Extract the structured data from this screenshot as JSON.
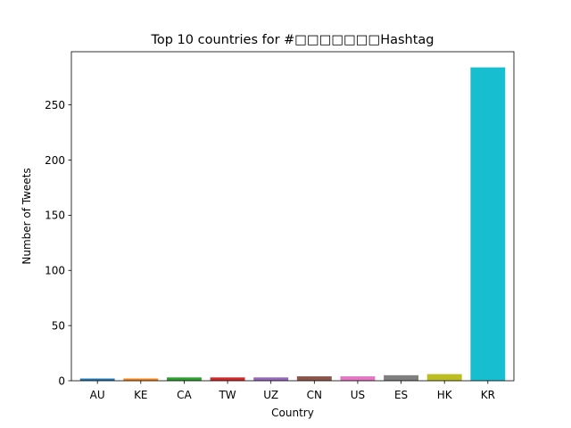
{
  "chart_data": {
    "type": "bar",
    "title": "Top 10 countries for #□□□□□□□Hashtag",
    "xlabel": "Country",
    "ylabel": "Number of Tweets",
    "categories": [
      "AU",
      "KE",
      "CA",
      "TW",
      "UZ",
      "CN",
      "US",
      "ES",
      "HK",
      "KR"
    ],
    "values": [
      2,
      2,
      3,
      3,
      3,
      4,
      4,
      5,
      6,
      284
    ],
    "colors": [
      "#1f77b4",
      "#ff7f0e",
      "#2ca02c",
      "#d62728",
      "#9467bd",
      "#8c564b",
      "#e377c2",
      "#7f7f7f",
      "#bcbd22",
      "#17becf"
    ],
    "ylim": [
      0,
      298.2
    ],
    "yticks": [
      0,
      50,
      100,
      150,
      200,
      250
    ],
    "grid": false,
    "legend": "none"
  }
}
